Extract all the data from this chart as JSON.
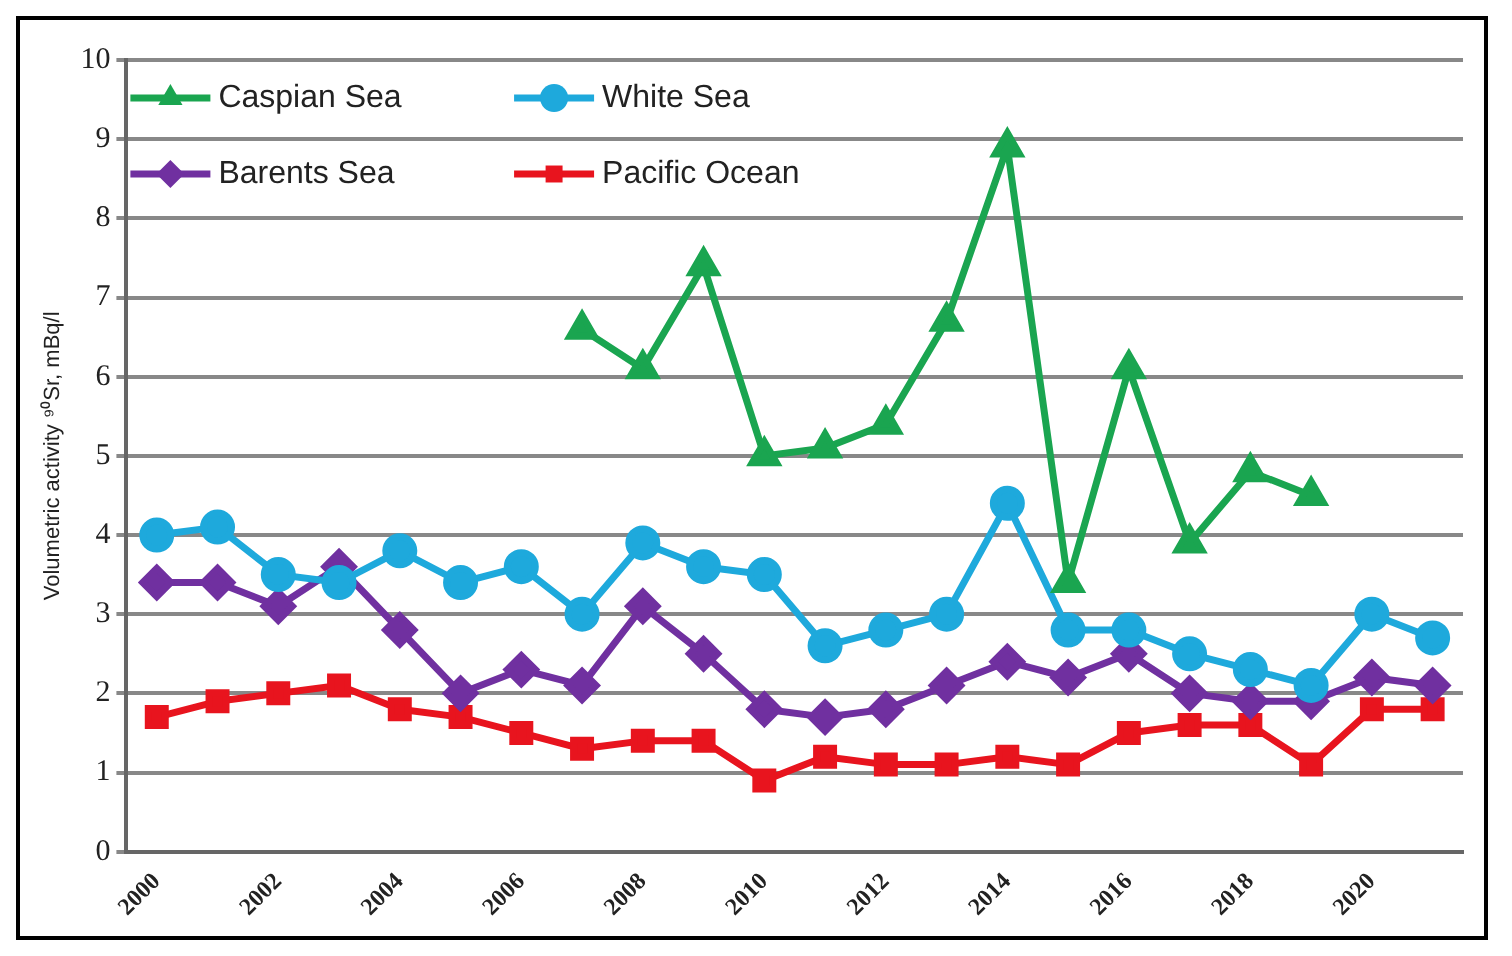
{
  "chart_data": {
    "type": "line",
    "ylabel": "Volumetric activity ⁹⁰Sr, mBq/l",
    "categories": [
      "2000",
      null,
      "2002",
      null,
      "2004",
      null,
      "2006",
      null,
      "2008",
      null,
      "2010",
      null,
      "2012",
      null,
      "2014",
      null,
      "2016",
      null,
      "2018",
      null,
      "2020",
      null
    ],
    "ylim": [
      0,
      10
    ],
    "yticks": [
      0,
      1,
      2,
      3,
      4,
      5,
      6,
      7,
      8,
      9,
      10
    ],
    "grid": "y",
    "legend": "top left",
    "series": [
      {
        "name": "Caspian Sea",
        "color": "#1aa550",
        "marker": "triangle",
        "values": [
          null,
          null,
          null,
          null,
          null,
          null,
          null,
          6.6,
          6.1,
          7.4,
          5.0,
          5.1,
          5.4,
          6.7,
          8.9,
          3.4,
          6.1,
          3.9,
          4.8,
          4.5,
          null,
          null
        ]
      },
      {
        "name": "White Sea",
        "color": "#1ea9dc",
        "marker": "circle",
        "values": [
          4.0,
          4.1,
          3.5,
          3.4,
          3.8,
          3.4,
          3.6,
          3.0,
          3.9,
          3.6,
          3.5,
          2.6,
          2.8,
          3.0,
          4.4,
          2.8,
          2.8,
          2.5,
          2.3,
          2.1,
          3.0,
          2.7
        ]
      },
      {
        "name": "Barents Sea",
        "color": "#7030a0",
        "marker": "diamond",
        "values": [
          3.4,
          3.4,
          3.1,
          3.6,
          2.8,
          2.0,
          2.3,
          2.1,
          3.1,
          2.5,
          1.8,
          1.7,
          1.8,
          2.1,
          2.4,
          2.2,
          2.5,
          2.0,
          1.9,
          1.9,
          2.2,
          2.1
        ]
      },
      {
        "name": "Pacific Ocean",
        "color": "#e8141e",
        "marker": "square",
        "values": [
          1.7,
          1.9,
          2.0,
          2.1,
          1.8,
          1.7,
          1.5,
          1.3,
          1.4,
          1.4,
          0.9,
          1.2,
          1.1,
          1.1,
          1.2,
          1.1,
          1.5,
          1.6,
          1.6,
          1.1,
          1.8,
          1.8
        ]
      }
    ]
  }
}
